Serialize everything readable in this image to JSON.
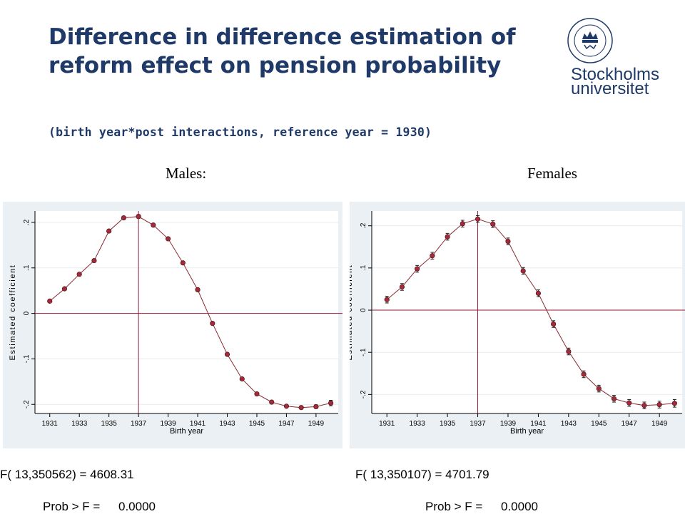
{
  "header": {
    "title": "Difference in difference estimation of reform effect on pension probability",
    "subtitle": "(birth year*post interactions, reference year = 1930)",
    "logo_line1": "Stockholms",
    "logo_line2": "universitet",
    "logo_ring_text": "UNIVERSITET · STOCKHOLMS ·"
  },
  "chart_data": [
    {
      "type": "scatter",
      "title": "Males:",
      "xlabel": "Birth year",
      "ylabel": "Estimated coefficient",
      "xlim": [
        1930,
        1950.5
      ],
      "ylim": [
        -0.22,
        0.225
      ],
      "xticks": [
        1931,
        1933,
        1935,
        1937,
        1939,
        1941,
        1943,
        1945,
        1947,
        1949
      ],
      "yticks": [
        -0.2,
        -0.1,
        0,
        0.1,
        0.2
      ],
      "ytick_labels": [
        "-.2",
        "-.1",
        "0",
        ".1",
        ".2"
      ],
      "reference_lines": {
        "x": 1937,
        "y": 0
      },
      "points": [
        {
          "x": 1931,
          "y": 0.027,
          "ci": 0.003
        },
        {
          "x": 1932,
          "y": 0.054,
          "ci": 0.003
        },
        {
          "x": 1933,
          "y": 0.086,
          "ci": 0.003
        },
        {
          "x": 1934,
          "y": 0.116,
          "ci": 0.003
        },
        {
          "x": 1935,
          "y": 0.181,
          "ci": 0.003
        },
        {
          "x": 1936,
          "y": 0.21,
          "ci": 0.003
        },
        {
          "x": 1937,
          "y": 0.213,
          "ci": 0.004
        },
        {
          "x": 1938,
          "y": 0.194,
          "ci": 0.003
        },
        {
          "x": 1939,
          "y": 0.164,
          "ci": 0.003
        },
        {
          "x": 1940,
          "y": 0.111,
          "ci": 0.003
        },
        {
          "x": 1941,
          "y": 0.052,
          "ci": 0.003
        },
        {
          "x": 1942,
          "y": -0.022,
          "ci": 0.003
        },
        {
          "x": 1943,
          "y": -0.09,
          "ci": 0.003
        },
        {
          "x": 1944,
          "y": -0.144,
          "ci": 0.003
        },
        {
          "x": 1945,
          "y": -0.177,
          "ci": 0.003
        },
        {
          "x": 1946,
          "y": -0.195,
          "ci": 0.003
        },
        {
          "x": 1947,
          "y": -0.204,
          "ci": 0.003
        },
        {
          "x": 1948,
          "y": -0.207,
          "ci": 0.003
        },
        {
          "x": 1949,
          "y": -0.205,
          "ci": 0.004
        },
        {
          "x": 1950,
          "y": -0.197,
          "ci": 0.006
        }
      ],
      "f_stat_label": "F( 13,350562) = 4608.31",
      "prob_label": "Prob > F =",
      "prob_value": "0.0000"
    },
    {
      "type": "scatter",
      "title": "Females",
      "xlabel": "Birth year",
      "ylabel": "Estimated coefficient",
      "xlim": [
        1930,
        1950.5
      ],
      "ylim": [
        -0.245,
        0.235
      ],
      "xticks": [
        1931,
        1933,
        1935,
        1937,
        1939,
        1941,
        1943,
        1945,
        1947,
        1949
      ],
      "yticks": [
        -0.2,
        -0.1,
        0,
        0.1,
        0.2
      ],
      "ytick_labels": [
        "-.2",
        "-.1",
        "0",
        ".1",
        ".2"
      ],
      "reference_lines": {
        "x": 1937,
        "y": 0
      },
      "points": [
        {
          "x": 1931,
          "y": 0.025,
          "ci": 0.008
        },
        {
          "x": 1932,
          "y": 0.055,
          "ci": 0.008
        },
        {
          "x": 1933,
          "y": 0.098,
          "ci": 0.008
        },
        {
          "x": 1934,
          "y": 0.129,
          "ci": 0.008
        },
        {
          "x": 1935,
          "y": 0.174,
          "ci": 0.008
        },
        {
          "x": 1936,
          "y": 0.205,
          "ci": 0.008
        },
        {
          "x": 1937,
          "y": 0.216,
          "ci": 0.008
        },
        {
          "x": 1938,
          "y": 0.204,
          "ci": 0.008
        },
        {
          "x": 1939,
          "y": 0.163,
          "ci": 0.008
        },
        {
          "x": 1940,
          "y": 0.093,
          "ci": 0.008
        },
        {
          "x": 1941,
          "y": 0.04,
          "ci": 0.008
        },
        {
          "x": 1942,
          "y": -0.033,
          "ci": 0.008
        },
        {
          "x": 1943,
          "y": -0.098,
          "ci": 0.008
        },
        {
          "x": 1944,
          "y": -0.152,
          "ci": 0.008
        },
        {
          "x": 1945,
          "y": -0.186,
          "ci": 0.008
        },
        {
          "x": 1946,
          "y": -0.21,
          "ci": 0.008
        },
        {
          "x": 1947,
          "y": -0.22,
          "ci": 0.008
        },
        {
          "x": 1948,
          "y": -0.226,
          "ci": 0.008
        },
        {
          "x": 1949,
          "y": -0.224,
          "ci": 0.008
        },
        {
          "x": 1950,
          "y": -0.221,
          "ci": 0.009
        }
      ],
      "f_stat_label": "F( 13,350107) = 4701.79",
      "prob_label": "Prob > F =",
      "prob_value": "0.0000"
    }
  ],
  "colors": {
    "title": "#1f3a68",
    "plot_background": "#eaf0f3",
    "reference_line": "#9a1a3a",
    "marker": "#a32a3a",
    "series_line": "#8a2a30"
  }
}
